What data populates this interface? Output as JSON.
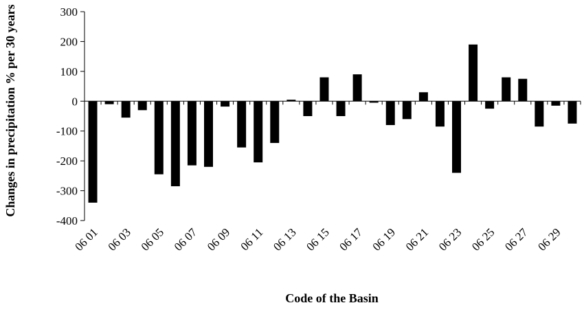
{
  "chart_data": {
    "type": "bar",
    "x_label": "Code of the Basin",
    "y_label": "Changes in  precipitation % per 30 years",
    "categories": [
      "06 01",
      null,
      "06 03",
      null,
      "06 05",
      null,
      "06 07",
      null,
      "06 09",
      null,
      "06 11",
      null,
      "06 13",
      null,
      "06 15",
      null,
      "06 17",
      null,
      "06 19",
      null,
      "06 21",
      null,
      "06 23",
      null,
      "06 25",
      null,
      "06 27",
      null,
      "06 29",
      null
    ],
    "values": [
      -340,
      -10,
      -55,
      -30,
      -245,
      -285,
      -215,
      -220,
      -18,
      -155,
      -205,
      -140,
      5,
      -50,
      80,
      -50,
      90,
      -5,
      -80,
      -60,
      30,
      -85,
      -240,
      190,
      -25,
      80,
      75,
      -85,
      -15,
      -75
    ],
    "color": "#000000",
    "ylim": [
      -400,
      300
    ],
    "yticks": [
      -400,
      -300,
      -200,
      -100,
      0,
      100,
      200,
      300
    ]
  }
}
